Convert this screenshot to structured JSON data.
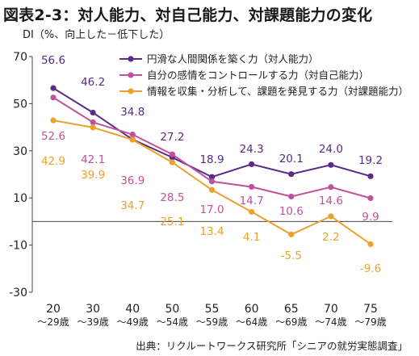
{
  "title": "図表2-3：対人能力、対自己能力、対課題能力の変化",
  "source": "出典：リクルートワークス研究所「シニアの就労実態調査」",
  "chart_data": {
    "type": "line",
    "ylabel": "DI（%、向上した－低下した）",
    "ylim": [
      -30,
      70
    ],
    "yticks": [
      -30,
      -10,
      10,
      30,
      50,
      70
    ],
    "categories": [
      [
        "20",
        "～29歳"
      ],
      [
        "30",
        "～39歳"
      ],
      [
        "40",
        "～49歳"
      ],
      [
        "50",
        "～54歳"
      ],
      [
        "55",
        "～59歳"
      ],
      [
        "60",
        "～64歳"
      ],
      [
        "65",
        "～69歳"
      ],
      [
        "70",
        "～74歳"
      ],
      [
        "75",
        "～79歳"
      ]
    ],
    "grid": false,
    "legend_position": "top-right",
    "series": [
      {
        "name": "円滑な人間関係を築く力（対人能力）",
        "color": "#5b2a86",
        "values": [
          56.6,
          46.2,
          34.8,
          27.2,
          18.9,
          24.3,
          20.1,
          24.0,
          19.2
        ]
      },
      {
        "name": "自分の感情をコントロールする力（対自己能力）",
        "color": "#c0529c",
        "values": [
          52.6,
          42.1,
          36.9,
          28.5,
          17.0,
          14.7,
          10.6,
          14.6,
          9.9
        ]
      },
      {
        "name": "情報を収集・分析して、課題を発見する力（対課題能力）",
        "color": "#eba12b",
        "values": [
          42.9,
          39.9,
          34.7,
          25.1,
          13.4,
          4.1,
          -5.5,
          2.2,
          -9.6
        ]
      }
    ]
  }
}
